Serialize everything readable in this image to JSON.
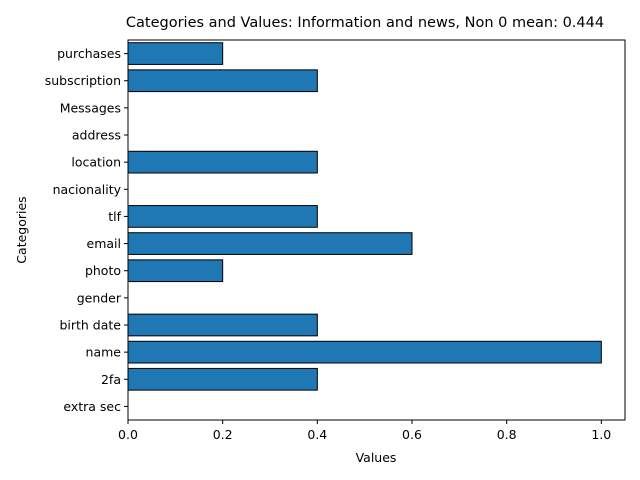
{
  "chart_data": {
    "type": "bar",
    "orientation": "horizontal",
    "title": "Categories and Values: Information and news, Non 0 mean: 0.444",
    "xlabel": "Values",
    "ylabel": "Categories",
    "xlim": [
      0,
      1.05
    ],
    "xticks": [
      "0.0",
      "0.2",
      "0.4",
      "0.6",
      "0.8",
      "1.0"
    ],
    "categories": [
      "extra sec",
      "2fa",
      "name",
      "birth date",
      "gender",
      "photo",
      "email",
      "tlf",
      "nacionality",
      "location",
      "address",
      "Messages",
      "subscription",
      "purchases"
    ],
    "values": [
      0,
      0.4,
      1.0,
      0.4,
      0,
      0.2,
      0.6,
      0.4,
      0,
      0.4,
      0,
      0,
      0.4,
      0.2
    ],
    "bar_color": "#1f77b4",
    "edge_color": "#000000",
    "grid": false,
    "legend": "none"
  }
}
